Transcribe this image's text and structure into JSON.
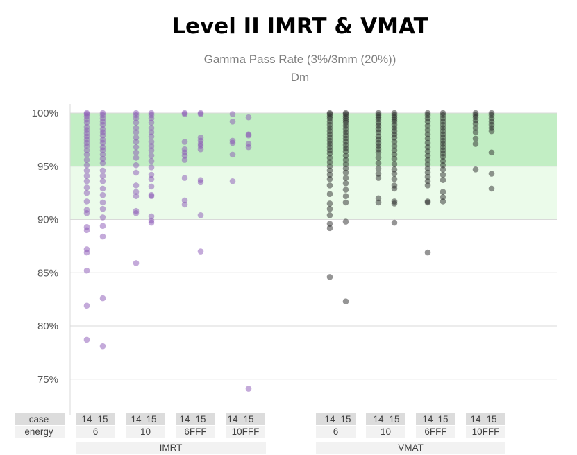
{
  "chart_data": {
    "type": "scatter",
    "title": "Level II IMRT & VMAT",
    "subtitle": "Gamma Pass Rate (3%/3mm (20%))",
    "subtitle2": "Dm",
    "y_tick_labels": [
      "100%",
      "95%",
      "90%",
      "85%",
      "80%",
      "75%"
    ],
    "y_ticks": [
      100,
      95,
      90,
      85,
      80,
      75
    ],
    "ylim": [
      73,
      100
    ],
    "bands": [
      {
        "from": 95,
        "to": 100,
        "color": "#c2eec4"
      },
      {
        "from": 90,
        "to": 95,
        "color": "#ebfbea"
      }
    ],
    "row_labels": {
      "case": "case",
      "energy": "energy"
    },
    "groups": [
      {
        "name": "IMRT",
        "color": "#8a55b5"
      },
      {
        "name": "VMAT",
        "color": "#2b2b2b"
      }
    ],
    "series": [
      {
        "group": "IMRT",
        "energy": "6",
        "case": "14",
        "values": [
          100,
          99.9,
          99.7,
          99.4,
          99.1,
          98.7,
          98.4,
          98.1,
          97.8,
          97.5,
          97.2,
          96.9,
          96.5,
          96.1,
          95.6,
          95.1,
          94.6,
          94.1,
          93.6,
          93.0,
          92.5,
          91.7,
          90.9,
          90.6,
          89.3,
          89.0,
          87.2,
          86.9,
          85.2,
          81.9,
          78.7
        ]
      },
      {
        "group": "IMRT",
        "energy": "6",
        "case": "15",
        "values": [
          100,
          99.8,
          99.5,
          99.2,
          98.9,
          98.5,
          98.2,
          97.9,
          97.5,
          97.2,
          96.8,
          96.5,
          96.1,
          95.7,
          95.3,
          94.6,
          94.1,
          93.6,
          92.9,
          92.3,
          91.6,
          91.0,
          90.2,
          89.4,
          88.4,
          82.6,
          78.1
        ]
      },
      {
        "group": "IMRT",
        "energy": "10",
        "case": "14",
        "values": [
          100,
          99.8,
          99.5,
          99.1,
          98.6,
          98.2,
          97.7,
          97.3,
          96.8,
          96.3,
          95.8,
          95.1,
          94.4,
          93.2,
          92.6,
          92.2,
          90.8,
          90.6,
          85.9
        ]
      },
      {
        "group": "IMRT",
        "energy": "10",
        "case": "15",
        "values": [
          100,
          99.8,
          99.5,
          99.1,
          98.6,
          98.2,
          97.8,
          97.3,
          96.9,
          96.5,
          96.0,
          95.5,
          94.9,
          94.2,
          93.8,
          93.1,
          92.3,
          92.2,
          90.3,
          89.9,
          89.7
        ]
      },
      {
        "group": "IMRT",
        "energy": "6FFF",
        "case": "14",
        "values": [
          100,
          99.9,
          97.3,
          96.6,
          96.3,
          96.0,
          95.6,
          93.9,
          91.8,
          91.4
        ]
      },
      {
        "group": "IMRT",
        "energy": "6FFF",
        "case": "15",
        "values": [
          100,
          99.9,
          97.7,
          97.4,
          97.1,
          96.9,
          96.6,
          93.7,
          93.5,
          90.4,
          87.0
        ]
      },
      {
        "group": "IMRT",
        "energy": "10FFF",
        "case": "14",
        "values": [
          99.9,
          99.2,
          97.4,
          97.2,
          96.1,
          93.6
        ]
      },
      {
        "group": "IMRT",
        "energy": "10FFF",
        "case": "15",
        "values": [
          99.6,
          98.0,
          97.9,
          97.1,
          96.8,
          74.1
        ]
      },
      {
        "group": "VMAT",
        "energy": "6",
        "case": "14",
        "values": [
          100,
          99.9,
          99.7,
          99.5,
          99.2,
          98.9,
          98.6,
          98.3,
          98.0,
          97.7,
          97.4,
          97.1,
          96.8,
          96.5,
          96.2,
          95.8,
          95.4,
          95.0,
          94.6,
          94.2,
          93.8,
          93.2,
          92.4,
          91.5,
          91.0,
          90.4,
          89.6,
          89.2,
          84.6
        ]
      },
      {
        "group": "VMAT",
        "energy": "6",
        "case": "15",
        "values": [
          100,
          99.9,
          99.7,
          99.5,
          99.3,
          99.1,
          98.8,
          98.5,
          98.2,
          97.9,
          97.6,
          97.3,
          97.0,
          96.7,
          96.4,
          96.0,
          95.6,
          95.2,
          94.8,
          94.4,
          93.9,
          93.4,
          92.8,
          92.2,
          91.6,
          89.8,
          82.3
        ]
      },
      {
        "group": "VMAT",
        "energy": "10",
        "case": "14",
        "values": [
          100,
          99.8,
          99.6,
          99.4,
          99.1,
          98.8,
          98.5,
          98.2,
          97.8,
          97.5,
          97.2,
          96.9,
          96.6,
          96.3,
          95.8,
          95.3,
          94.8,
          94.3,
          93.9,
          92.0,
          91.6
        ]
      },
      {
        "group": "VMAT",
        "energy": "10",
        "case": "15",
        "values": [
          100,
          99.8,
          99.6,
          99.4,
          99.2,
          98.9,
          98.6,
          98.3,
          98.0,
          97.7,
          97.3,
          96.9,
          96.5,
          96.1,
          95.7,
          95.2,
          94.7,
          94.3,
          93.8,
          93.2,
          92.9,
          91.7,
          91.5,
          89.7
        ]
      },
      {
        "group": "VMAT",
        "energy": "6FFF",
        "case": "14",
        "values": [
          100,
          99.8,
          99.5,
          99.2,
          98.8,
          98.4,
          98.0,
          97.6,
          97.2,
          96.8,
          96.4,
          96.0,
          95.6,
          95.2,
          94.8,
          94.4,
          94.0,
          93.6,
          93.2,
          91.7,
          91.6,
          86.9
        ]
      },
      {
        "group": "VMAT",
        "energy": "6FFF",
        "case": "15",
        "values": [
          100,
          99.8,
          99.5,
          99.2,
          98.9,
          98.6,
          98.3,
          98.0,
          97.7,
          97.4,
          97.1,
          96.8,
          96.5,
          96.2,
          95.9,
          95.5,
          95.1,
          94.7,
          94.2,
          93.7,
          92.6,
          92.1,
          91.7
        ]
      },
      {
        "group": "VMAT",
        "energy": "10FFF",
        "case": "14",
        "values": [
          100,
          99.8,
          99.6,
          99.3,
          99.0,
          98.6,
          98.2,
          97.6,
          97.1,
          94.7
        ]
      },
      {
        "group": "VMAT",
        "energy": "10FFF",
        "case": "15",
        "values": [
          100,
          99.8,
          99.5,
          99.2,
          98.9,
          98.6,
          98.3,
          96.3,
          94.3,
          92.9
        ]
      }
    ]
  }
}
